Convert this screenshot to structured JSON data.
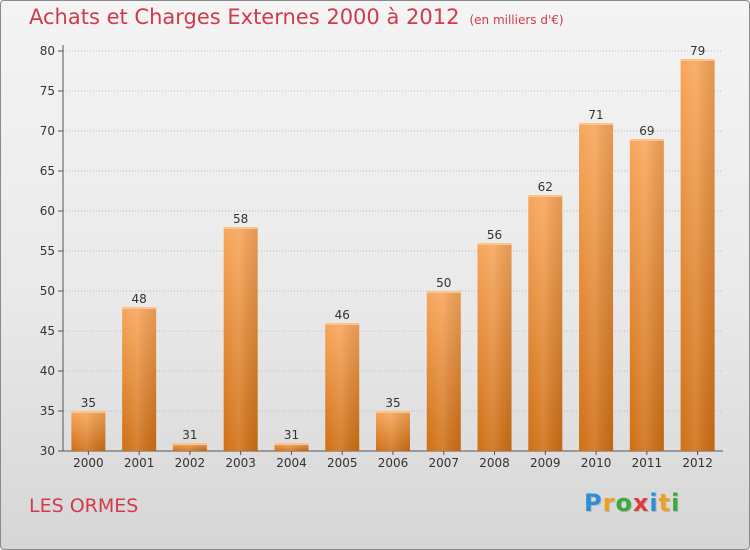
{
  "title": "Achats et Charges Externes 2000 à 2012",
  "unit": "(en milliers d'€)",
  "location": "LES ORMES",
  "logo": {
    "text": "Proxiti",
    "letters": [
      {
        "c": "P",
        "color": "#2f8fd6"
      },
      {
        "c": "r",
        "color": "#f0a020"
      },
      {
        "c": "o",
        "color": "#3aaa3a"
      },
      {
        "c": "x",
        "color": "#e03a3a"
      },
      {
        "c": "i",
        "color": "#2f8fd6"
      },
      {
        "c": "t",
        "color": "#f0a020"
      },
      {
        "c": "i",
        "color": "#3aaa3a"
      }
    ]
  },
  "colors": {
    "title": "#d23a4a",
    "bar_top": "#f8a65a",
    "bar_bottom": "#cf6f14",
    "axis": "#555555",
    "grid": "#bbbbbb"
  },
  "chart_data": {
    "type": "bar",
    "categories": [
      "2000",
      "2001",
      "2002",
      "2003",
      "2004",
      "2005",
      "2006",
      "2007",
      "2008",
      "2009",
      "2010",
      "2011",
      "2012"
    ],
    "values": [
      35,
      48,
      31,
      58,
      31,
      46,
      35,
      50,
      56,
      62,
      71,
      69,
      79
    ],
    "data_labels": [
      "35",
      "48",
      "31",
      "58",
      "31",
      "46",
      "35",
      "50",
      "56",
      "62",
      "71",
      "69",
      "79"
    ],
    "ylim": [
      30,
      80
    ],
    "yticks": [
      "30",
      "35",
      "40",
      "45",
      "50",
      "55",
      "60",
      "65",
      "70",
      "75",
      "80"
    ],
    "grid": true
  }
}
